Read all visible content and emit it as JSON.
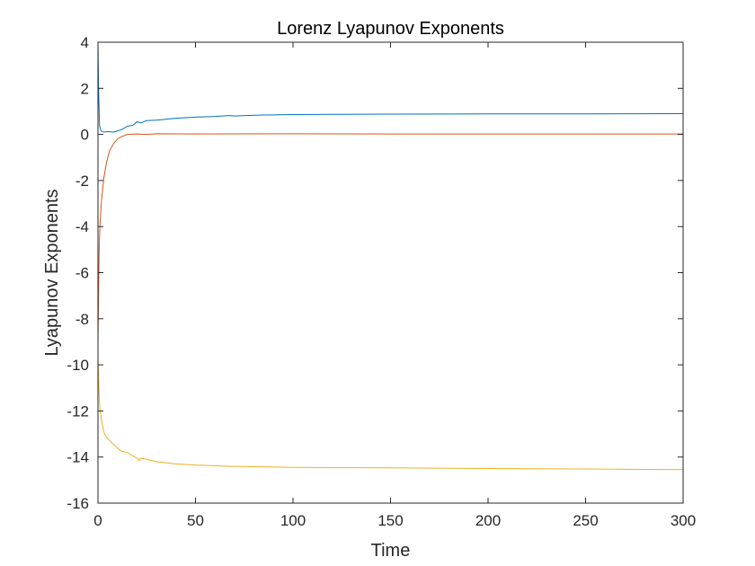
{
  "chart_data": {
    "type": "line",
    "title": "Lorenz Lyapunov Exponents",
    "xlabel": "Time",
    "ylabel": "Lyapunov Exponents",
    "xlim": [
      0,
      300
    ],
    "ylim": [
      -16,
      4
    ],
    "xticks": [
      0,
      50,
      100,
      150,
      200,
      250,
      300
    ],
    "xtick_labels": [
      "0",
      "50",
      "100",
      "150",
      "200",
      "250",
      "300"
    ],
    "yticks": [
      4,
      2,
      0,
      -2,
      -4,
      -6,
      -8,
      -10,
      -12,
      -14,
      -16
    ],
    "ytick_labels": [
      "4",
      "2",
      "0",
      "-2",
      "-4",
      "-6",
      "-8",
      "-10",
      "-12",
      "-14",
      "-16"
    ],
    "grid": false,
    "box": true,
    "series": [
      {
        "color": "#0072BD",
        "x": [
          0,
          0.3,
          0.8,
          1.5,
          3,
          5,
          8,
          10,
          12,
          15,
          18,
          20,
          22,
          25,
          30,
          40,
          50,
          60,
          67,
          70,
          80,
          100,
          120,
          150,
          200,
          250,
          300
        ],
        "y": [
          4.0,
          2.0,
          0.4,
          0.15,
          0.1,
          0.12,
          0.1,
          0.15,
          0.2,
          0.35,
          0.4,
          0.55,
          0.5,
          0.6,
          0.62,
          0.7,
          0.75,
          0.78,
          0.82,
          0.8,
          0.83,
          0.86,
          0.87,
          0.88,
          0.89,
          0.89,
          0.9
        ]
      },
      {
        "color": "#D95319",
        "x": [
          0,
          0.3,
          0.6,
          1,
          1.5,
          2,
          3,
          4,
          5,
          6,
          8,
          10,
          12,
          15,
          20,
          25,
          30,
          50,
          100,
          150,
          200,
          250,
          300
        ],
        "y": [
          -9.0,
          -7.0,
          -5.0,
          -4.0,
          -3.2,
          -2.7,
          -1.9,
          -1.4,
          -1.0,
          -0.7,
          -0.4,
          -0.2,
          -0.1,
          0.0,
          0.02,
          0.0,
          0.03,
          0.02,
          0.03,
          0.02,
          0.02,
          0.02,
          0.02
        ]
      },
      {
        "color": "#EDB120",
        "x": [
          0,
          0.3,
          0.6,
          1,
          1.5,
          2,
          3,
          4,
          5,
          6,
          8,
          10,
          12,
          15,
          18,
          20,
          21,
          22,
          25,
          30,
          40,
          50,
          67,
          80,
          100,
          150,
          200,
          250,
          300
        ],
        "y": [
          -9.7,
          -10.5,
          -11.3,
          -11.9,
          -12.2,
          -12.5,
          -12.9,
          -13.1,
          -13.2,
          -13.3,
          -13.45,
          -13.6,
          -13.75,
          -13.8,
          -13.95,
          -14.05,
          -14.15,
          -14.05,
          -14.1,
          -14.2,
          -14.3,
          -14.35,
          -14.4,
          -14.42,
          -14.45,
          -14.47,
          -14.5,
          -14.52,
          -14.55
        ]
      }
    ]
  }
}
